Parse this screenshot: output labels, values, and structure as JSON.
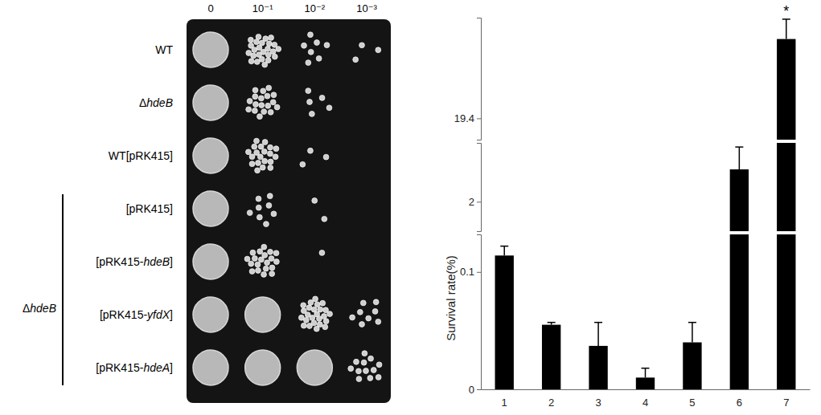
{
  "spot_assay": {
    "dilutions": [
      "0",
      "10⁻¹",
      "10⁻²",
      "10⁻³"
    ],
    "strains": [
      "WT",
      "ΔhdeB",
      "WT[pRK415]",
      "[pRK415]",
      "[pRK415-hdeB]",
      "[pRK415-yfdX]",
      "[pRK415-hdeA]"
    ],
    "group_label": "ΔhdeB",
    "group_rows": [
      3,
      6
    ],
    "confluent": [
      [
        true,
        false,
        false,
        false
      ],
      [
        true,
        false,
        false,
        false
      ],
      [
        true,
        false,
        false,
        false
      ],
      [
        true,
        false,
        false,
        false
      ],
      [
        true,
        false,
        false,
        false
      ],
      [
        true,
        true,
        false,
        false
      ],
      [
        true,
        true,
        true,
        false
      ]
    ],
    "colonies": [
      [
        null,
        25,
        7,
        3
      ],
      [
        null,
        18,
        5,
        0
      ],
      [
        null,
        20,
        3,
        0
      ],
      [
        null,
        8,
        2,
        0
      ],
      [
        null,
        20,
        1,
        0
      ],
      [
        null,
        null,
        25,
        8
      ],
      [
        null,
        null,
        null,
        12
      ]
    ]
  },
  "chart_data": {
    "type": "bar",
    "categories": [
      "1",
      "2",
      "3",
      "4",
      "5",
      "6",
      "7"
    ],
    "values": [
      0.114,
      0.055,
      0.037,
      0.01,
      0.04,
      2.55,
      24.6
    ],
    "errors": [
      0.008,
      0.002,
      0.02,
      0.008,
      0.017,
      0.38,
      1.3
    ],
    "color": "#000000",
    "y_label": "Survival rate(%)",
    "y_segments": [
      {
        "ylim": [
          0,
          0.132
        ],
        "yticks": [
          0,
          0.1
        ]
      },
      {
        "ylim": [
          1.5,
          3
        ],
        "yticks": [
          2
        ]
      },
      {
        "ylim": [
          18,
          26
        ],
        "yticks": [
          19.4
        ]
      }
    ],
    "annotations": [
      {
        "text": "*",
        "category": 6
      }
    ]
  }
}
